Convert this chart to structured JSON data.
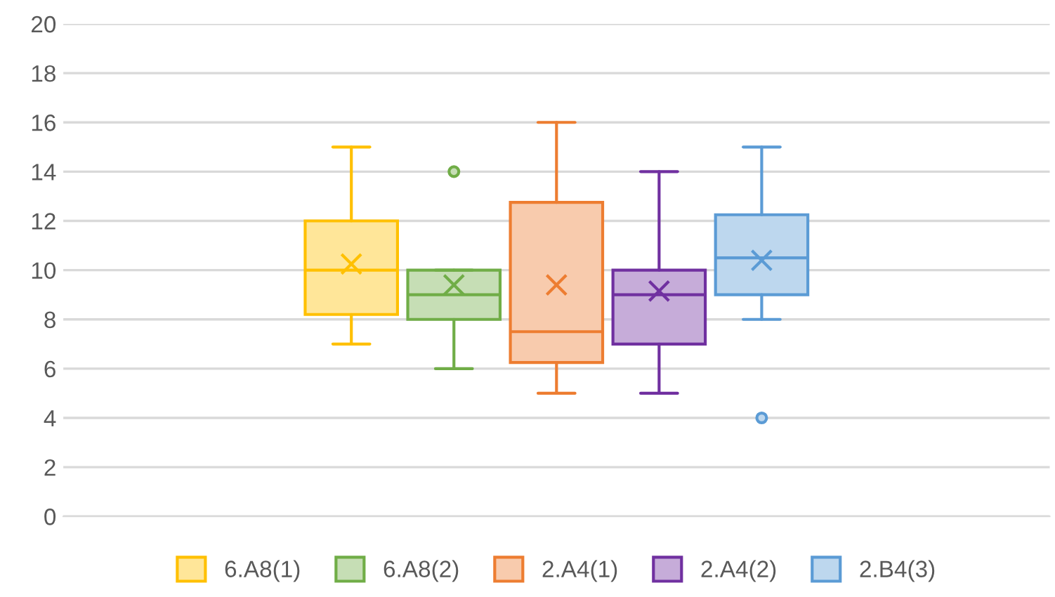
{
  "chart_data": {
    "type": "box",
    "categories": [
      null
    ],
    "ylim": [
      0,
      20
    ],
    "yticks": [
      0,
      2,
      4,
      6,
      8,
      10,
      12,
      14,
      16,
      18,
      20
    ],
    "grid": "y",
    "legend": "bottom",
    "series": [
      {
        "name": "6.A8(1)",
        "color": "#ffc000",
        "boxes": [
          {
            "low": 7,
            "q1": 8.2,
            "median": 10,
            "q3": 12,
            "high": 15,
            "mean": 10.25
          }
        ]
      },
      {
        "name": "6.A8(2)",
        "color": "#70ad47",
        "boxes": [
          {
            "low": 6,
            "q1": 8,
            "median": 9,
            "q3": 10,
            "high": 10,
            "mean": 9.4,
            "outliers": [
              14
            ]
          }
        ]
      },
      {
        "name": "2.A4(1)",
        "color": "#ed7d31",
        "boxes": [
          {
            "low": 5,
            "q1": 6.25,
            "median": 7.5,
            "q3": 12.75,
            "high": 16,
            "mean": 9.4
          }
        ]
      },
      {
        "name": "2.A4(2)",
        "color": "#7030a0",
        "boxes": [
          {
            "low": 5,
            "q1": 7,
            "median": 9,
            "q3": 10,
            "high": 14,
            "mean": 9.15
          }
        ]
      },
      {
        "name": "2.B4(3)",
        "color": "#5b9bd5",
        "boxes": [
          {
            "low": 8,
            "q1": 9,
            "median": 10.5,
            "q3": 12.25,
            "high": 15,
            "mean": 10.4,
            "outliers": [
              4
            ]
          }
        ]
      }
    ]
  }
}
